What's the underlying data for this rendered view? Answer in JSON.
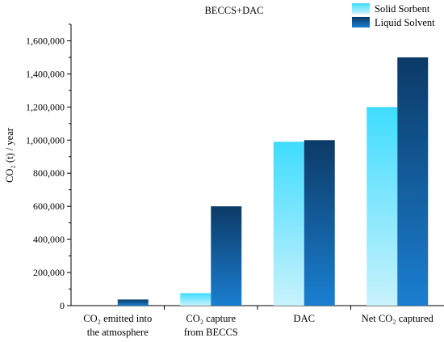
{
  "chart_data": {
    "type": "bar",
    "title": "BECCS+DAC",
    "ylabel": "CO₂ (t) / year",
    "xlabel": "",
    "ylim": [
      0,
      1700000
    ],
    "yticks": [
      0,
      200000,
      400000,
      600000,
      800000,
      1000000,
      1200000,
      1400000,
      1600000
    ],
    "ytick_labels": [
      "0",
      "200,000",
      "400,000",
      "600,000",
      "800,000",
      "1,000,000",
      "1,200,000",
      "1,400,000",
      "1,600,000"
    ],
    "categories": [
      [
        "CO₂ emitted into",
        "the atmosphere"
      ],
      [
        "CO₂ capture",
        "from BECCS"
      ],
      [
        "DAC"
      ],
      [
        "Net CO₂ captured"
      ]
    ],
    "series": [
      {
        "name": "Solid Sorbent",
        "values": [
          0,
          75000,
          990000,
          1200000
        ],
        "color_top": "#3fdcff",
        "color_bottom": "#c8f2fc"
      },
      {
        "name": "Liquid Solvent",
        "values": [
          37000,
          600000,
          1000000,
          1500000
        ],
        "color_top": "#0c3a66",
        "color_bottom": "#1a7fd0"
      }
    ],
    "legend_position": "top-right",
    "grid": false
  }
}
